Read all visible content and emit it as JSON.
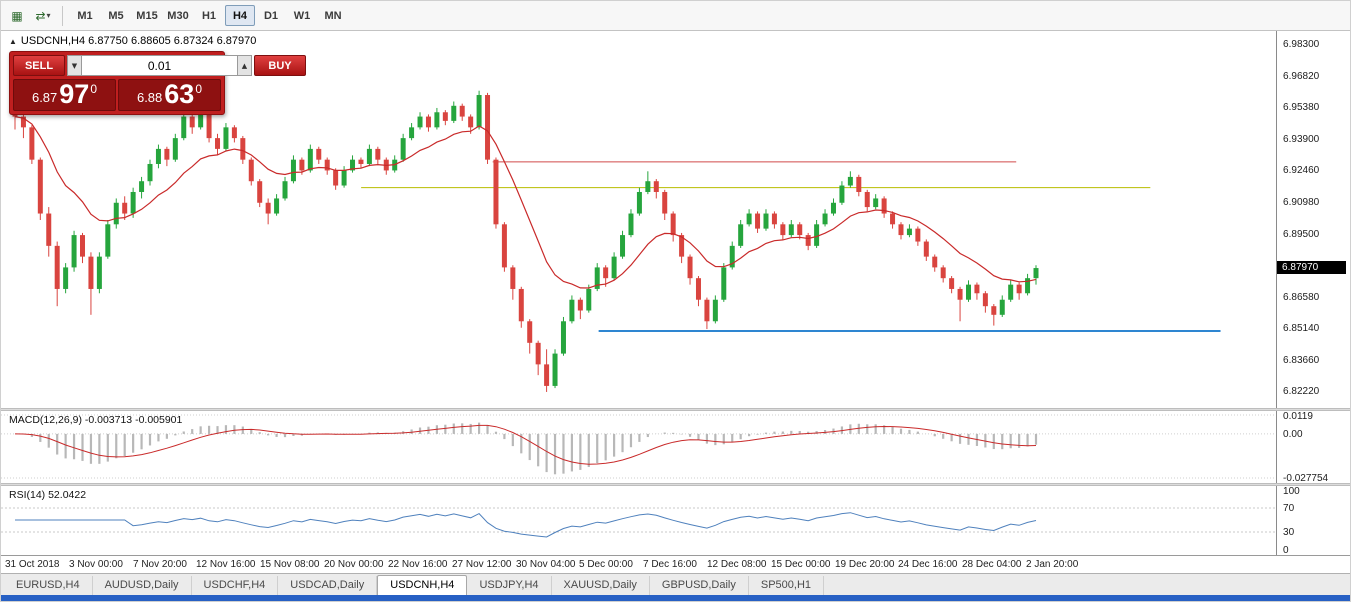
{
  "toolbar": {
    "icon1_glyph": "▦",
    "icon2_glyph": "⇄",
    "caret_glyph": "▾",
    "timeframes": [
      {
        "label": "M1",
        "active": false
      },
      {
        "label": "M5",
        "active": false
      },
      {
        "label": "M15",
        "active": false
      },
      {
        "label": "M30",
        "active": false
      },
      {
        "label": "H1",
        "active": false
      },
      {
        "label": "H4",
        "active": true
      },
      {
        "label": "D1",
        "active": false
      },
      {
        "label": "W1",
        "active": false
      },
      {
        "label": "MN",
        "active": false
      }
    ]
  },
  "trade_panel": {
    "collapse_glyph": "▲",
    "sell_label": "SELL",
    "buy_label": "BUY",
    "lot_value": "0.01",
    "lot_down_glyph": "▼",
    "lot_up_glyph": "▲",
    "bid": {
      "small": "6.87",
      "big": "97",
      "pip": "0"
    },
    "ask": {
      "small": "6.88",
      "big": "63",
      "pip": "0"
    }
  },
  "colors": {
    "candle_up": "#26a53d",
    "candle_down": "#d9443f",
    "ma_line": "#c92a2a",
    "macd_hist": "#b8b8b8",
    "macd_signal": "#c92a2a",
    "rsi_line": "#4f81bd",
    "badge_bg": "#000000",
    "accent_blue_strip": "#2760c4"
  },
  "chart_data": [
    {
      "type": "candlestick",
      "symbol": "USDCNH",
      "timeframe": "H4",
      "ohlc_title": "USDCNH,H4 6.87750 6.88605 6.87324 6.87970",
      "open": 6.8775,
      "high": 6.88605,
      "low": 6.87324,
      "close": 6.8797,
      "current_price_label": "6.87970",
      "ylim": [
        6.818,
        6.986
      ],
      "price_ticks": [
        "6.98300",
        "6.96820",
        "6.95380",
        "6.93900",
        "6.92460",
        "6.90980",
        "6.89500",
        "6.86580",
        "6.85140",
        "6.83660",
        "6.82220"
      ],
      "hlines": [
        {
          "name": "resistance-line-red",
          "color": "#d04a4a",
          "price": 6.929,
          "x1": 0.385,
          "x2": 0.795,
          "width": 1
        },
        {
          "name": "resistance-line-yellow",
          "color": "#b8bd00",
          "price": 6.917,
          "x1": 0.282,
          "x2": 0.9,
          "width": 1
        },
        {
          "name": "support-line-blue",
          "color": "#2e86d1",
          "price": 6.8505,
          "x1": 0.468,
          "x2": 0.955,
          "width": 2
        }
      ],
      "ma_period": 13,
      "candles": [
        [
          6.952,
          6.956,
          6.944,
          6.95
        ],
        [
          6.95,
          6.953,
          6.94,
          6.945
        ],
        [
          6.945,
          6.946,
          6.928,
          6.93
        ],
        [
          6.93,
          6.931,
          6.902,
          6.905
        ],
        [
          6.905,
          6.908,
          6.885,
          6.89
        ],
        [
          6.89,
          6.892,
          6.862,
          6.87
        ],
        [
          6.87,
          6.882,
          6.868,
          6.88
        ],
        [
          6.88,
          6.897,
          6.878,
          6.895
        ],
        [
          6.895,
          6.896,
          6.882,
          6.885
        ],
        [
          6.885,
          6.887,
          6.858,
          6.87
        ],
        [
          6.87,
          6.887,
          6.868,
          6.885
        ],
        [
          6.885,
          6.902,
          6.884,
          6.9
        ],
        [
          6.9,
          6.912,
          6.898,
          6.91
        ],
        [
          6.91,
          6.913,
          6.902,
          6.905
        ],
        [
          6.905,
          6.917,
          6.903,
          6.915
        ],
        [
          6.915,
          6.922,
          6.912,
          6.92
        ],
        [
          6.92,
          6.93,
          6.918,
          6.928
        ],
        [
          6.928,
          6.937,
          6.926,
          6.935
        ],
        [
          6.935,
          6.936,
          6.927,
          6.93
        ],
        [
          6.93,
          6.942,
          6.929,
          6.94
        ],
        [
          6.94,
          6.953,
          6.939,
          6.95
        ],
        [
          6.95,
          6.952,
          6.942,
          6.945
        ],
        [
          6.945,
          6.955,
          6.944,
          6.952
        ],
        [
          6.952,
          6.953,
          6.938,
          6.94
        ],
        [
          6.94,
          6.942,
          6.932,
          6.935
        ],
        [
          6.935,
          6.947,
          6.934,
          6.945
        ],
        [
          6.945,
          6.946,
          6.938,
          6.94
        ],
        [
          6.94,
          6.941,
          6.928,
          6.93
        ],
        [
          6.93,
          6.931,
          6.918,
          6.92
        ],
        [
          6.92,
          6.921,
          6.908,
          6.91
        ],
        [
          6.91,
          6.912,
          6.9,
          6.905
        ],
        [
          6.905,
          6.914,
          6.904,
          6.912
        ],
        [
          6.912,
          6.922,
          6.911,
          6.92
        ],
        [
          6.92,
          6.932,
          6.919,
          6.93
        ],
        [
          6.93,
          6.931,
          6.923,
          6.925
        ],
        [
          6.925,
          6.937,
          6.924,
          6.935
        ],
        [
          6.935,
          6.936,
          6.928,
          6.93
        ],
        [
          6.93,
          6.931,
          6.923,
          6.925
        ],
        [
          6.925,
          6.926,
          6.916,
          6.918
        ],
        [
          6.918,
          6.927,
          6.917,
          6.925
        ],
        [
          6.925,
          6.932,
          6.924,
          6.93
        ],
        [
          6.93,
          6.931,
          6.926,
          6.928
        ],
        [
          6.928,
          6.937,
          6.927,
          6.935
        ],
        [
          6.935,
          6.936,
          6.928,
          6.93
        ],
        [
          6.93,
          6.931,
          6.923,
          6.925
        ],
        [
          6.925,
          6.932,
          6.924,
          6.93
        ],
        [
          6.93,
          6.942,
          6.929,
          6.94
        ],
        [
          6.94,
          6.947,
          6.939,
          6.945
        ],
        [
          6.945,
          6.952,
          6.944,
          6.95
        ],
        [
          6.95,
          6.951,
          6.943,
          6.945
        ],
        [
          6.945,
          6.954,
          6.944,
          6.952
        ],
        [
          6.952,
          6.953,
          6.946,
          6.948
        ],
        [
          6.948,
          6.957,
          6.947,
          6.955
        ],
        [
          6.955,
          6.956,
          6.948,
          6.95
        ],
        [
          6.95,
          6.951,
          6.942,
          6.945
        ],
        [
          6.945,
          6.962,
          6.944,
          6.96
        ],
        [
          6.96,
          6.961,
          6.928,
          6.93
        ],
        [
          6.93,
          6.931,
          6.898,
          6.9
        ],
        [
          6.9,
          6.901,
          6.878,
          6.88
        ],
        [
          6.88,
          6.881,
          6.865,
          6.87
        ],
        [
          6.87,
          6.871,
          6.852,
          6.855
        ],
        [
          6.855,
          6.856,
          6.84,
          6.845
        ],
        [
          6.845,
          6.846,
          6.83,
          6.835
        ],
        [
          6.835,
          6.842,
          6.8222,
          6.825
        ],
        [
          6.825,
          6.842,
          6.824,
          6.84
        ],
        [
          6.84,
          6.857,
          6.839,
          6.855
        ],
        [
          6.855,
          6.867,
          6.854,
          6.865
        ],
        [
          6.865,
          6.866,
          6.856,
          6.86
        ],
        [
          6.86,
          6.872,
          6.859,
          6.87
        ],
        [
          6.87,
          6.882,
          6.869,
          6.88
        ],
        [
          6.88,
          6.881,
          6.871,
          6.875
        ],
        [
          6.875,
          6.887,
          6.874,
          6.885
        ],
        [
          6.885,
          6.897,
          6.884,
          6.895
        ],
        [
          6.895,
          6.907,
          6.894,
          6.905
        ],
        [
          6.905,
          6.917,
          6.904,
          6.915
        ],
        [
          6.915,
          6.9246,
          6.914,
          6.92
        ],
        [
          6.92,
          6.921,
          6.912,
          6.915
        ],
        [
          6.915,
          6.916,
          6.902,
          6.905
        ],
        [
          6.905,
          6.906,
          6.892,
          6.895
        ],
        [
          6.895,
          6.896,
          6.882,
          6.885
        ],
        [
          6.885,
          6.886,
          6.872,
          6.875
        ],
        [
          6.875,
          6.876,
          6.862,
          6.865
        ],
        [
          6.865,
          6.866,
          6.8514,
          6.855
        ],
        [
          6.855,
          6.867,
          6.854,
          6.865
        ],
        [
          6.865,
          6.882,
          6.864,
          6.88
        ],
        [
          6.88,
          6.892,
          6.879,
          6.89
        ],
        [
          6.89,
          6.902,
          6.889,
          6.9
        ],
        [
          6.9,
          6.907,
          6.899,
          6.905
        ],
        [
          6.905,
          6.906,
          6.896,
          6.898
        ],
        [
          6.898,
          6.907,
          6.897,
          6.905
        ],
        [
          6.905,
          6.906,
          6.898,
          6.9
        ],
        [
          6.9,
          6.901,
          6.893,
          6.895
        ],
        [
          6.895,
          6.902,
          6.894,
          6.9
        ],
        [
          6.9,
          6.901,
          6.893,
          6.895
        ],
        [
          6.895,
          6.896,
          6.888,
          6.89
        ],
        [
          6.89,
          6.902,
          6.889,
          6.9
        ],
        [
          6.9,
          6.907,
          6.899,
          6.905
        ],
        [
          6.905,
          6.912,
          6.904,
          6.91
        ],
        [
          6.91,
          6.92,
          6.909,
          6.918
        ],
        [
          6.918,
          6.9246,
          6.917,
          6.922
        ],
        [
          6.922,
          6.923,
          6.913,
          6.915
        ],
        [
          6.915,
          6.916,
          6.906,
          6.908
        ],
        [
          6.908,
          6.914,
          6.907,
          6.912
        ],
        [
          6.912,
          6.913,
          6.903,
          6.905
        ],
        [
          6.905,
          6.906,
          6.898,
          6.9
        ],
        [
          6.9,
          6.901,
          6.893,
          6.895
        ],
        [
          6.895,
          6.9,
          6.894,
          6.898
        ],
        [
          6.898,
          6.899,
          6.89,
          6.892
        ],
        [
          6.892,
          6.893,
          6.883,
          6.885
        ],
        [
          6.885,
          6.886,
          6.878,
          6.88
        ],
        [
          6.88,
          6.881,
          6.873,
          6.875
        ],
        [
          6.875,
          6.876,
          6.868,
          6.87
        ],
        [
          6.87,
          6.871,
          6.855,
          6.865
        ],
        [
          6.865,
          6.874,
          6.864,
          6.872
        ],
        [
          6.872,
          6.873,
          6.865,
          6.868
        ],
        [
          6.868,
          6.869,
          6.859,
          6.862
        ],
        [
          6.862,
          6.863,
          6.853,
          6.858
        ],
        [
          6.858,
          6.867,
          6.857,
          6.865
        ],
        [
          6.865,
          6.874,
          6.864,
          6.872
        ],
        [
          6.872,
          6.873,
          6.865,
          6.868
        ],
        [
          6.868,
          6.877,
          6.867,
          6.875
        ],
        [
          6.875,
          6.881,
          6.872,
          6.8797
        ]
      ]
    },
    {
      "type": "bar",
      "name": "MACD",
      "label": "MACD(12,26,9) -0.003713 -0.005901",
      "params": [
        12,
        26,
        9
      ],
      "macd_value": -0.003713,
      "signal_value": -0.005901,
      "ylim": [
        -0.027754,
        0.0119
      ],
      "ticks": [
        "0.0119",
        "0.00",
        "-0.027754"
      ],
      "derived_from": "candles_closes"
    },
    {
      "type": "line",
      "name": "RSI",
      "label": "RSI(14) 52.0422",
      "period": 14,
      "current": 52.0422,
      "ylim": [
        0,
        100
      ],
      "ticks": [
        "100",
        "70",
        "30",
        "0"
      ],
      "levels": [
        70,
        30
      ],
      "derived_from": "candles_closes"
    }
  ],
  "time_axis": [
    "31 Oct 2018",
    "3 Nov 00:00",
    "7 Nov 20:00",
    "12 Nov 16:00",
    "15 Nov 08:00",
    "20 Nov 00:00",
    "22 Nov 16:00",
    "27 Nov 12:00",
    "30 Nov 04:00",
    "5 Dec 00:00",
    "7 Dec 16:00",
    "12 Dec 08:00",
    "15 Dec 00:00",
    "19 Dec 20:00",
    "24 Dec 16:00",
    "28 Dec 04:00",
    "2 Jan 20:00"
  ],
  "tabs": [
    {
      "label": "EURUSD,H4",
      "active": false
    },
    {
      "label": "AUDUSD,Daily",
      "active": false
    },
    {
      "label": "USDCHF,H4",
      "active": false
    },
    {
      "label": "USDCAD,Daily",
      "active": false
    },
    {
      "label": "USDCNH,H4",
      "active": true
    },
    {
      "label": "USDJPY,H4",
      "active": false
    },
    {
      "label": "XAUUSD,Daily",
      "active": false
    },
    {
      "label": "GBPUSD,Daily",
      "active": false
    },
    {
      "label": "SP500,H1",
      "active": false
    }
  ]
}
